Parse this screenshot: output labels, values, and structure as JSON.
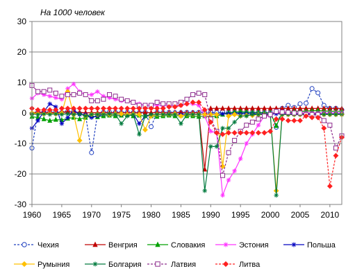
{
  "chart_data": {
    "type": "line",
    "ylabel": "На 1000 человек",
    "xlim": [
      1960,
      2012
    ],
    "ylim": [
      -30,
      30
    ],
    "x_ticks": [
      1960,
      1965,
      1970,
      1975,
      1980,
      1985,
      1990,
      1995,
      2000,
      2005,
      2010
    ],
    "y_ticks": [
      -30,
      -20,
      -10,
      0,
      10,
      20,
      30
    ],
    "grid": true,
    "legend_position": "bottom",
    "series": [
      {
        "name": "Чехия",
        "color": "#1f3fbf",
        "marker": "circle",
        "dash": "dashed",
        "x": [
          1960,
          1961,
          1962,
          1963,
          1964,
          1965,
          1966,
          1967,
          1968,
          1969,
          1970,
          1971,
          1972,
          1973,
          1974,
          1975,
          1976,
          1977,
          1978,
          1979,
          1980,
          1981,
          1982,
          1983,
          1984,
          1985,
          1986,
          1987,
          1988,
          1989,
          1990,
          1991,
          1992,
          1993,
          1994,
          1995,
          1996,
          1997,
          1998,
          1999,
          2000,
          2001,
          2002,
          2003,
          2004,
          2005,
          2006,
          2007,
          2008,
          2009,
          2010,
          2011,
          2012
        ],
        "y": [
          -11.5,
          0.2,
          0.1,
          0.3,
          0.2,
          0.1,
          0.5,
          0.3,
          -0.2,
          -0.8,
          -13,
          -0.5,
          0.2,
          0.3,
          0.2,
          0.1,
          0.2,
          0.1,
          0.1,
          0.2,
          -4.5,
          0.2,
          0.1,
          0.2,
          0.1,
          0.1,
          0.2,
          0.1,
          0.2,
          0.1,
          0.2,
          0.1,
          0.3,
          0.1,
          0.1,
          0.1,
          0.1,
          0.1,
          0.1,
          0.1,
          0.1,
          -4.7,
          1.5,
          2.5,
          1.8,
          3,
          3.2,
          8,
          6.6,
          2.5,
          1.5,
          1.5,
          1
        ]
      },
      {
        "name": "Венгрия",
        "color": "#c00000",
        "marker": "triangle",
        "dash": "solid",
        "x": [
          1960,
          1961,
          1962,
          1963,
          1964,
          1965,
          1966,
          1967,
          1968,
          1969,
          1970,
          1971,
          1972,
          1973,
          1974,
          1975,
          1976,
          1977,
          1978,
          1979,
          1980,
          1981,
          1982,
          1983,
          1984,
          1985,
          1986,
          1987,
          1988,
          1989,
          1990,
          1991,
          1992,
          1993,
          1994,
          1995,
          1996,
          1997,
          1998,
          1999,
          2000,
          2001,
          2002,
          2003,
          2004,
          2005,
          2006,
          2007,
          2008,
          2009,
          2010,
          2011,
          2012
        ],
        "y": [
          0.1,
          0.3,
          0.2,
          0.2,
          0.1,
          0.3,
          0.5,
          0.3,
          0.2,
          0.1,
          0.1,
          0.1,
          0.2,
          0.1,
          0.2,
          0.1,
          0.1,
          0.2,
          0.1,
          0.2,
          0.1,
          0.2,
          0.1,
          0.1,
          0.1,
          0.2,
          0.1,
          0.1,
          0.1,
          -18.5,
          1.5,
          1.5,
          1.5,
          1.5,
          1.5,
          1.5,
          1.5,
          1.5,
          1.5,
          1.5,
          1.5,
          1.5,
          1.5,
          1.5,
          1.5,
          1.5,
          1.5,
          1.5,
          1.5,
          1.5,
          1.5,
          1.5,
          1.5
        ]
      },
      {
        "name": "Словакия",
        "color": "#00a000",
        "marker": "triangle",
        "dash": "solid",
        "x": [
          1960,
          1961,
          1962,
          1963,
          1964,
          1965,
          1966,
          1967,
          1968,
          1969,
          1970,
          1971,
          1972,
          1973,
          1974,
          1975,
          1976,
          1977,
          1978,
          1979,
          1980,
          1981,
          1982,
          1983,
          1984,
          1985,
          1986,
          1987,
          1988,
          1989,
          1990,
          1991,
          1992,
          1993,
          1994,
          1995,
          1996,
          1997,
          1998,
          1999,
          2000,
          2001,
          2002,
          2003,
          2004,
          2005,
          2006,
          2007,
          2008,
          2009,
          2010,
          2011,
          2012
        ],
        "y": [
          -1.2,
          -1.5,
          -2,
          -2.5,
          -2.2,
          -2.3,
          -1.8,
          -1.5,
          -2,
          -1.5,
          -1,
          -1.3,
          -1,
          -0.8,
          -1,
          -0.8,
          -0.6,
          -1,
          -0.8,
          -1,
          -1,
          -1.2,
          -1,
          -0.8,
          -1,
          -0.8,
          -1,
          -1,
          -1.2,
          -1,
          -1.2,
          -1,
          -0.5,
          0.1,
          0.3,
          0.5,
          0.3,
          0.2,
          0.2,
          0.1,
          0.1,
          -4.2,
          0.1,
          0.3,
          0.5,
          0.5,
          0.6,
          0.7,
          0.8,
          0.6,
          0.6,
          0.5,
          0.5
        ]
      },
      {
        "name": "Эстония",
        "color": "#ff33ff",
        "marker": "star",
        "dash": "solid",
        "x": [
          1960,
          1961,
          1962,
          1963,
          1964,
          1965,
          1966,
          1967,
          1968,
          1969,
          1970,
          1971,
          1972,
          1973,
          1974,
          1975,
          1976,
          1977,
          1978,
          1979,
          1980,
          1981,
          1982,
          1983,
          1984,
          1985,
          1986,
          1987,
          1988,
          1989,
          1990,
          1991,
          1992,
          1993,
          1994,
          1995,
          1996,
          1997,
          1998,
          1999,
          2000,
          2001,
          2002,
          2003,
          2004,
          2005,
          2006,
          2007,
          2008,
          2009,
          2010,
          2011,
          2012
        ],
        "y": [
          4.8,
          6.5,
          6,
          5.5,
          5,
          4.5,
          8,
          9.5,
          7,
          6,
          6,
          7,
          5.5,
          5,
          4.5,
          4,
          4,
          3.5,
          3,
          2.5,
          2.5,
          2.5,
          2.5,
          2.5,
          2.5,
          2.5,
          3,
          3,
          2.5,
          -1,
          -6,
          -6.5,
          -27,
          -22,
          -19,
          -15,
          -10,
          -7,
          -4,
          -1,
          -1,
          0.3,
          0.2,
          0,
          0,
          0,
          0,
          0,
          0,
          0,
          0,
          0,
          0
        ]
      },
      {
        "name": "Польша",
        "color": "#0000c0",
        "marker": "asterisk",
        "dash": "solid",
        "x": [
          1960,
          1961,
          1962,
          1963,
          1964,
          1965,
          1966,
          1967,
          1968,
          1969,
          1970,
          1971,
          1972,
          1973,
          1974,
          1975,
          1976,
          1977,
          1978,
          1979,
          1980,
          1981,
          1982,
          1983,
          1984,
          1985,
          1986,
          1987,
          1988,
          1989,
          1990,
          1991,
          1992,
          1993,
          1994,
          1995,
          1996,
          1997,
          1998,
          1999,
          2000,
          2001,
          2002,
          2003,
          2004,
          2005,
          2006,
          2007,
          2008,
          2009,
          2010,
          2011,
          2012
        ],
        "y": [
          -5,
          -2.5,
          0.5,
          3,
          2,
          -3.5,
          -1.5,
          1,
          -0.5,
          -0.5,
          -1.5,
          -1,
          -0.5,
          -0.5,
          -0.3,
          -0.5,
          -0.5,
          -0.3,
          -3.5,
          -1,
          -1,
          -0.5,
          -0.5,
          -0.3,
          -0.5,
          -0.5,
          -0.3,
          -0.5,
          -0.5,
          -0.5,
          -0.3,
          -0.5,
          -0.3,
          -0.3,
          -0.3,
          -0.3,
          -0.3,
          -0.3,
          -0.3,
          -0.3,
          -0.3,
          -0.3,
          -0.3,
          -0.3,
          -0.3,
          -0.3,
          -0.3,
          -0.3,
          -0.3,
          -0.3,
          -0.3,
          -0.3,
          -0.3
        ]
      },
      {
        "name": "Румыния",
        "color": "#ffc000",
        "marker": "diamond",
        "dash": "solid",
        "x": [
          1960,
          1961,
          1962,
          1963,
          1964,
          1965,
          1966,
          1967,
          1968,
          1969,
          1970,
          1971,
          1972,
          1973,
          1974,
          1975,
          1976,
          1977,
          1978,
          1979,
          1980,
          1981,
          1982,
          1983,
          1984,
          1985,
          1986,
          1987,
          1988,
          1989,
          1990,
          1991,
          1992,
          1993,
          1994,
          1995,
          1996,
          1997,
          1998,
          1999,
          2000,
          2001,
          2002,
          2003,
          2004,
          2005,
          2006,
          2007,
          2008,
          2009,
          2010,
          2011,
          2012
        ],
        "y": [
          0,
          -0.2,
          -0.3,
          -0.2,
          -0.3,
          -0.1,
          7,
          -0.5,
          -9,
          -1,
          -0.5,
          -0.5,
          -0.3,
          -0.5,
          -0.3,
          -0.3,
          -0.5,
          -0.3,
          -0.5,
          -5.5,
          -1,
          -0.5,
          -0.5,
          -0.5,
          -0.3,
          -1,
          -0.5,
          -0.5,
          -0.5,
          -0.5,
          -0.5,
          -0.5,
          -17.5,
          -1,
          -0.5,
          -1,
          -0.8,
          -0.8,
          -0.5,
          -0.5,
          -0.5,
          -25.5,
          -0.5,
          -0.5,
          -0.5,
          -0.5,
          -0.5,
          -0.5,
          -0.5,
          -0.5,
          -0.5,
          -0.5,
          -0.5
        ]
      },
      {
        "name": "Болгария",
        "color": "#007a3d",
        "marker": "asterisk",
        "dash": "solid",
        "x": [
          1960,
          1961,
          1962,
          1963,
          1964,
          1965,
          1966,
          1967,
          1968,
          1969,
          1970,
          1971,
          1972,
          1973,
          1974,
          1975,
          1976,
          1977,
          1978,
          1979,
          1980,
          1981,
          1982,
          1983,
          1984,
          1985,
          1986,
          1987,
          1988,
          1989,
          1990,
          1991,
          1992,
          1993,
          1994,
          1995,
          1996,
          1997,
          1998,
          1999,
          2000,
          2001,
          2002,
          2003,
          2004,
          2005,
          2006,
          2007,
          2008,
          2009,
          2010,
          2011,
          2012
        ],
        "y": [
          -0.3,
          -0.5,
          -0.3,
          -0.5,
          -0.3,
          -0.5,
          -0.3,
          -0.5,
          -0.3,
          -1,
          -0.5,
          -0.5,
          -0.5,
          -0.3,
          -0.5,
          -3.5,
          -1,
          -0.5,
          -7,
          -1,
          -0.5,
          -0.5,
          -0.5,
          -0.5,
          -0.5,
          -3.5,
          -0.5,
          -0.5,
          -0.5,
          -25.5,
          -11,
          -11,
          -5,
          -5,
          -3,
          -1,
          -1,
          -0.5,
          -0.5,
          -0.5,
          -0.5,
          -27,
          -0.5,
          -0.5,
          -0.5,
          -0.5,
          -0.5,
          -0.5,
          -0.5,
          -0.5,
          -0.5,
          -0.5,
          -0.5
        ]
      },
      {
        "name": "Латвия",
        "color": "#8c2a8c",
        "marker": "square",
        "dash": "dashed",
        "x": [
          1960,
          1961,
          1962,
          1963,
          1964,
          1965,
          1966,
          1967,
          1968,
          1969,
          1970,
          1971,
          1972,
          1973,
          1974,
          1975,
          1976,
          1977,
          1978,
          1979,
          1980,
          1981,
          1982,
          1983,
          1984,
          1985,
          1986,
          1987,
          1988,
          1989,
          1990,
          1991,
          1992,
          1993,
          1994,
          1995,
          1996,
          1997,
          1998,
          1999,
          2000,
          2001,
          2002,
          2003,
          2004,
          2005,
          2006,
          2007,
          2008,
          2009,
          2010,
          2011,
          2012
        ],
        "y": [
          9,
          7,
          7,
          7.5,
          6.5,
          5.5,
          6,
          6,
          6.5,
          6,
          4,
          4,
          4.5,
          6,
          5.5,
          4.5,
          4,
          3.5,
          2.5,
          2.5,
          2.5,
          3.5,
          3,
          3,
          3,
          3.5,
          4.5,
          6,
          6.5,
          6,
          -2,
          -6,
          -20.5,
          -13,
          -9,
          -6,
          -4,
          -3,
          -2,
          -1,
          -0.5,
          0.5,
          0.3,
          0.2,
          0,
          0,
          -0.5,
          -0.5,
          -0.5,
          -2.5,
          -4,
          -11.5,
          -7.5
        ]
      },
      {
        "name": "Литва",
        "color": "#ff2020",
        "marker": "diamond",
        "dash": "dashed",
        "x": [
          1960,
          1961,
          1962,
          1963,
          1964,
          1965,
          1966,
          1967,
          1968,
          1969,
          1970,
          1971,
          1972,
          1973,
          1974,
          1975,
          1976,
          1977,
          1978,
          1979,
          1980,
          1981,
          1982,
          1983,
          1984,
          1985,
          1986,
          1987,
          1988,
          1989,
          1990,
          1991,
          1992,
          1993,
          1994,
          1995,
          1996,
          1997,
          1998,
          1999,
          2000,
          2001,
          2002,
          2003,
          2004,
          2005,
          2006,
          2007,
          2008,
          2009,
          2010,
          2011,
          2012
        ],
        "y": [
          1.5,
          1,
          1,
          1,
          1,
          1.5,
          1.5,
          1.5,
          1.5,
          1.5,
          1.5,
          1.5,
          1.5,
          1.5,
          1.5,
          1.5,
          1.5,
          1.5,
          1.5,
          1.5,
          1.5,
          1.5,
          1.5,
          2,
          2,
          2.5,
          3,
          3.5,
          3.5,
          1,
          -3,
          -6.5,
          -7,
          -6.5,
          -6.5,
          -6.5,
          -6.5,
          -6.5,
          -6.5,
          -6.5,
          -6,
          -2,
          -2,
          -2.5,
          -2.5,
          -2.5,
          -1,
          -1.5,
          -1.5,
          -5,
          -24,
          -14,
          -8
        ]
      }
    ]
  }
}
